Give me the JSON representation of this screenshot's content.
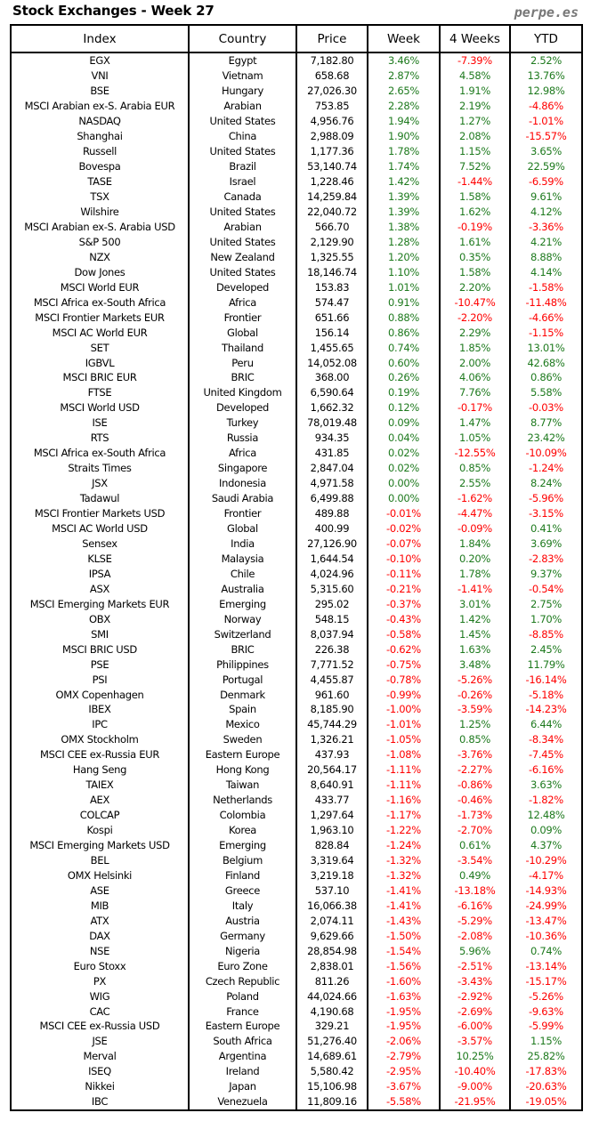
{
  "header": {
    "title": "Stock Exchanges - Week 27",
    "brand": "perpe.es"
  },
  "colors": {
    "positive": "#1e7a1e",
    "negative": "#ff0000"
  },
  "table": {
    "columns": [
      "Index",
      "Country",
      "Price",
      "Week",
      "4 Weeks",
      "YTD"
    ],
    "rows": [
      [
        "EGX",
        "Egypt",
        "7,182.80",
        "3.46%",
        "-7.39%",
        "2.52%"
      ],
      [
        "VNI",
        "Vietnam",
        "658.68",
        "2.87%",
        "4.58%",
        "13.76%"
      ],
      [
        "BSE",
        "Hungary",
        "27,026.30",
        "2.65%",
        "1.91%",
        "12.98%"
      ],
      [
        "MSCI Arabian ex-S. Arabia EUR",
        "Arabian",
        "753.85",
        "2.28%",
        "2.19%",
        "-4.86%"
      ],
      [
        "NASDAQ",
        "United States",
        "4,956.76",
        "1.94%",
        "1.27%",
        "-1.01%"
      ],
      [
        "Shanghai",
        "China",
        "2,988.09",
        "1.90%",
        "2.08%",
        "-15.57%"
      ],
      [
        "Russell",
        "United States",
        "1,177.36",
        "1.78%",
        "1.15%",
        "3.65%"
      ],
      [
        "Bovespa",
        "Brazil",
        "53,140.74",
        "1.74%",
        "7.52%",
        "22.59%"
      ],
      [
        "TASE",
        "Israel",
        "1,228.46",
        "1.42%",
        "-1.44%",
        "-6.59%"
      ],
      [
        "TSX",
        "Canada",
        "14,259.84",
        "1.39%",
        "1.58%",
        "9.61%"
      ],
      [
        "Wilshire",
        "United States",
        "22,040.72",
        "1.39%",
        "1.62%",
        "4.12%"
      ],
      [
        "MSCI Arabian ex-S. Arabia USD",
        "Arabian",
        "566.70",
        "1.38%",
        "-0.19%",
        "-3.36%"
      ],
      [
        "S&P 500",
        "United States",
        "2,129.90",
        "1.28%",
        "1.61%",
        "4.21%"
      ],
      [
        "NZX",
        "New Zealand",
        "1,325.55",
        "1.20%",
        "0.35%",
        "8.88%"
      ],
      [
        "Dow Jones",
        "United States",
        "18,146.74",
        "1.10%",
        "1.58%",
        "4.14%"
      ],
      [
        "MSCI World EUR",
        "Developed",
        "153.83",
        "1.01%",
        "2.20%",
        "-1.58%"
      ],
      [
        "MSCI Africa ex-South Africa",
        "Africa",
        "574.47",
        "0.91%",
        "-10.47%",
        "-11.48%"
      ],
      [
        "MSCI Frontier Markets EUR",
        "Frontier",
        "651.66",
        "0.88%",
        "-2.20%",
        "-4.66%"
      ],
      [
        "MSCI AC World EUR",
        "Global",
        "156.14",
        "0.86%",
        "2.29%",
        "-1.15%"
      ],
      [
        "SET",
        "Thailand",
        "1,455.65",
        "0.74%",
        "1.85%",
        "13.01%"
      ],
      [
        "IGBVL",
        "Peru",
        "14,052.08",
        "0.60%",
        "2.00%",
        "42.68%"
      ],
      [
        "MSCI BRIC EUR",
        "BRIC",
        "368.00",
        "0.26%",
        "4.06%",
        "0.86%"
      ],
      [
        "FTSE",
        "United Kingdom",
        "6,590.64",
        "0.19%",
        "7.76%",
        "5.58%"
      ],
      [
        "MSCI World USD",
        "Developed",
        "1,662.32",
        "0.12%",
        "-0.17%",
        "-0.03%"
      ],
      [
        "ISE",
        "Turkey",
        "78,019.48",
        "0.09%",
        "1.47%",
        "8.77%"
      ],
      [
        "RTS",
        "Russia",
        "934.35",
        "0.04%",
        "1.05%",
        "23.42%"
      ],
      [
        "MSCI Africa ex-South Africa",
        "Africa",
        "431.85",
        "0.02%",
        "-12.55%",
        "-10.09%"
      ],
      [
        "Straits Times",
        "Singapore",
        "2,847.04",
        "0.02%",
        "0.85%",
        "-1.24%"
      ],
      [
        "JSX",
        "Indonesia",
        "4,971.58",
        "0.00%",
        "2.55%",
        "8.24%"
      ],
      [
        "Tadawul",
        "Saudi Arabia",
        "6,499.88",
        "0.00%",
        "-1.62%",
        "-5.96%"
      ],
      [
        "MSCI Frontier Markets USD",
        "Frontier",
        "489.88",
        "-0.01%",
        "-4.47%",
        "-3.15%"
      ],
      [
        "MSCI AC World USD",
        "Global",
        "400.99",
        "-0.02%",
        "-0.09%",
        "0.41%"
      ],
      [
        "Sensex",
        "India",
        "27,126.90",
        "-0.07%",
        "1.84%",
        "3.69%"
      ],
      [
        "KLSE",
        "Malaysia",
        "1,644.54",
        "-0.10%",
        "0.20%",
        "-2.83%"
      ],
      [
        "IPSA",
        "Chile",
        "4,024.96",
        "-0.11%",
        "1.78%",
        "9.37%"
      ],
      [
        "ASX",
        "Australia",
        "5,315.60",
        "-0.21%",
        "-1.41%",
        "-0.54%"
      ],
      [
        "MSCI Emerging Markets EUR",
        "Emerging",
        "295.02",
        "-0.37%",
        "3.01%",
        "2.75%"
      ],
      [
        "OBX",
        "Norway",
        "548.15",
        "-0.43%",
        "1.42%",
        "1.70%"
      ],
      [
        "SMI",
        "Switzerland",
        "8,037.94",
        "-0.58%",
        "1.45%",
        "-8.85%"
      ],
      [
        "MSCI BRIC USD",
        "BRIC",
        "226.38",
        "-0.62%",
        "1.63%",
        "2.45%"
      ],
      [
        "PSE",
        "Philippines",
        "7,771.52",
        "-0.75%",
        "3.48%",
        "11.79%"
      ],
      [
        "PSI",
        "Portugal",
        "4,455.87",
        "-0.78%",
        "-5.26%",
        "-16.14%"
      ],
      [
        "OMX Copenhagen",
        "Denmark",
        "961.60",
        "-0.99%",
        "-0.26%",
        "-5.18%"
      ],
      [
        "IBEX",
        "Spain",
        "8,185.90",
        "-1.00%",
        "-3.59%",
        "-14.23%"
      ],
      [
        "IPC",
        "Mexico",
        "45,744.29",
        "-1.01%",
        "1.25%",
        "6.44%"
      ],
      [
        "OMX Stockholm",
        "Sweden",
        "1,326.21",
        "-1.05%",
        "0.85%",
        "-8.34%"
      ],
      [
        "MSCI CEE ex-Russia EUR",
        "Eastern Europe",
        "437.93",
        "-1.08%",
        "-3.76%",
        "-7.45%"
      ],
      [
        "Hang Seng",
        "Hong Kong",
        "20,564.17",
        "-1.11%",
        "-2.27%",
        "-6.16%"
      ],
      [
        "TAIEX",
        "Taiwan",
        "8,640.91",
        "-1.11%",
        "-0.86%",
        "3.63%"
      ],
      [
        "AEX",
        "Netherlands",
        "433.77",
        "-1.16%",
        "-0.46%",
        "-1.82%"
      ],
      [
        "COLCAP",
        "Colombia",
        "1,297.64",
        "-1.17%",
        "-1.73%",
        "12.48%"
      ],
      [
        "Kospi",
        "Korea",
        "1,963.10",
        "-1.22%",
        "-2.70%",
        "0.09%"
      ],
      [
        "MSCI Emerging Markets USD",
        "Emerging",
        "828.84",
        "-1.24%",
        "0.61%",
        "4.37%"
      ],
      [
        "BEL",
        "Belgium",
        "3,319.64",
        "-1.32%",
        "-3.54%",
        "-10.29%"
      ],
      [
        "OMX Helsinki",
        "Finland",
        "3,219.18",
        "-1.32%",
        "0.49%",
        "-4.17%"
      ],
      [
        "ASE",
        "Greece",
        "537.10",
        "-1.41%",
        "-13.18%",
        "-14.93%"
      ],
      [
        "MIB",
        "Italy",
        "16,066.38",
        "-1.41%",
        "-6.16%",
        "-24.99%"
      ],
      [
        "ATX",
        "Austria",
        "2,074.11",
        "-1.43%",
        "-5.29%",
        "-13.47%"
      ],
      [
        "DAX",
        "Germany",
        "9,629.66",
        "-1.50%",
        "-2.08%",
        "-10.36%"
      ],
      [
        "NSE",
        "Nigeria",
        "28,854.98",
        "-1.54%",
        "5.96%",
        "0.74%"
      ],
      [
        "Euro Stoxx",
        "Euro Zone",
        "2,838.01",
        "-1.56%",
        "-2.51%",
        "-13.14%"
      ],
      [
        "PX",
        "Czech Republic",
        "811.26",
        "-1.60%",
        "-3.43%",
        "-15.17%"
      ],
      [
        "WIG",
        "Poland",
        "44,024.66",
        "-1.63%",
        "-2.92%",
        "-5.26%"
      ],
      [
        "CAC",
        "France",
        "4,190.68",
        "-1.95%",
        "-2.69%",
        "-9.63%"
      ],
      [
        "MSCI CEE ex-Russia USD",
        "Eastern Europe",
        "329.21",
        "-1.95%",
        "-6.00%",
        "-5.99%"
      ],
      [
        "JSE",
        "South Africa",
        "51,276.40",
        "-2.06%",
        "-3.57%",
        "1.15%"
      ],
      [
        "Merval",
        "Argentina",
        "14,689.61",
        "-2.79%",
        "10.25%",
        "25.82%"
      ],
      [
        "ISEQ",
        "Ireland",
        "5,580.42",
        "-2.95%",
        "-10.40%",
        "-17.83%"
      ],
      [
        "Nikkei",
        "Japan",
        "15,106.98",
        "-3.67%",
        "-9.00%",
        "-20.63%"
      ],
      [
        "IBC",
        "Venezuela",
        "11,809.16",
        "-5.58%",
        "-21.95%",
        "-19.05%"
      ]
    ]
  }
}
